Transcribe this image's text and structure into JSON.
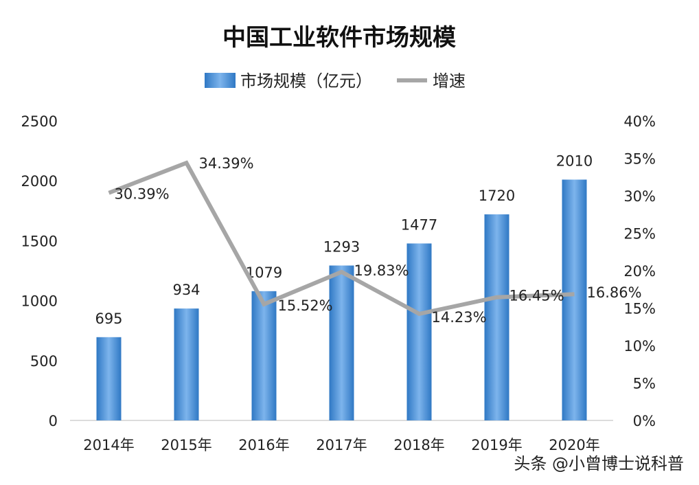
{
  "chart_data": {
    "type": "bar",
    "title": "中国工业软件市场规模",
    "categories": [
      "2014年",
      "2015年",
      "2016年",
      "2017年",
      "2018年",
      "2019年",
      "2020年"
    ],
    "series": [
      {
        "name": "市场规模（亿元）",
        "type": "bar",
        "axis": "left",
        "values": [
          695,
          934,
          1079,
          1293,
          1477,
          1720,
          2010
        ],
        "labels": [
          "695",
          "934",
          "1079",
          "1293",
          "1477",
          "1720",
          "2010"
        ]
      },
      {
        "name": "增速",
        "type": "line",
        "axis": "right",
        "values": [
          30.39,
          34.39,
          15.52,
          19.83,
          14.23,
          16.45,
          16.86
        ],
        "labels": [
          "30.39%",
          "34.39%",
          "15.52%",
          "19.83%",
          "14.23%",
          "16.45%",
          "16.86%"
        ]
      }
    ],
    "ylim_left": [
      0,
      2500
    ],
    "yticks_left": [
      "0",
      "500",
      "1000",
      "1500",
      "2000",
      "2500"
    ],
    "ylim_right": [
      0,
      40
    ],
    "yticks_right": [
      "0%",
      "5%",
      "10%",
      "15%",
      "20%",
      "25%",
      "30%",
      "35%",
      "40%"
    ],
    "grid": false,
    "legend_position": "top-center",
    "colors": {
      "bar": "#4a90d9",
      "bar_light": "#7db4ec",
      "bar_dark": "#2f78c4",
      "line": "#a6a6a6",
      "axis": "#d0d0d0"
    }
  },
  "watermark": "头条 @小曾博士说科普"
}
